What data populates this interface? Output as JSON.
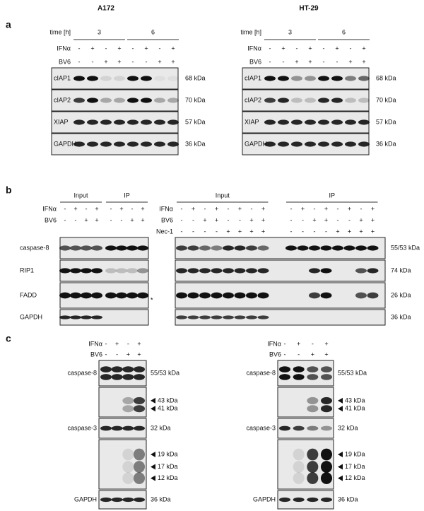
{
  "panels": [
    "a",
    "b",
    "c"
  ],
  "a": [
    {
      "title": "A172",
      "time_label": "time [h]",
      "time_groups": [
        "3",
        "6"
      ],
      "rows": [
        {
          "label": "IFNα",
          "signs": [
            "-",
            "+",
            "-",
            "+",
            "-",
            "+",
            "-",
            "+"
          ]
        },
        {
          "label": "BV6",
          "signs": [
            "-",
            "-",
            "+",
            "+",
            "-",
            "-",
            "+",
            "+"
          ]
        }
      ],
      "blots": [
        {
          "name": "cIAP1",
          "size": "68 kDa"
        },
        {
          "name": "cIAP2",
          "size": "70 kDa"
        },
        {
          "name": "XIAP",
          "size": "57 kDa"
        },
        {
          "name": "GAPDH",
          "size": "36 kDa"
        }
      ]
    },
    {
      "title": "HT-29",
      "time_label": "time [h]",
      "time_groups": [
        "3",
        "6"
      ],
      "rows": [
        {
          "label": "IFNα",
          "signs": [
            "-",
            "+",
            "-",
            "+",
            "-",
            "+",
            "-",
            "+"
          ]
        },
        {
          "label": "BV6",
          "signs": [
            "-",
            "-",
            "+",
            "+",
            "-",
            "-",
            "+",
            "+"
          ]
        }
      ],
      "blots": [
        {
          "name": "cIAP1",
          "size": "68 kDa"
        },
        {
          "name": "cIAP2",
          "size": "70 kDa"
        },
        {
          "name": "XIAP",
          "size": "57 kDa"
        },
        {
          "name": "GAPDH",
          "size": "36 kDa"
        }
      ]
    }
  ],
  "b": {
    "left": {
      "groups": [
        "Input",
        "IP"
      ],
      "rows": [
        {
          "label": "IFNα",
          "signs": [
            "-",
            "+",
            "-",
            "+",
            "-",
            "+",
            "-",
            "+"
          ]
        },
        {
          "label": "BV6",
          "signs": [
            "-",
            "-",
            "+",
            "+",
            "-",
            "-",
            "+",
            "+"
          ]
        }
      ],
      "blots": [
        "caspase-8",
        "RIP1",
        "FADD",
        "GAPDH"
      ],
      "asterisk": "*"
    },
    "right": {
      "groups": [
        "Input",
        "IP"
      ],
      "rows": [
        {
          "label": "IFNα",
          "signs": [
            "-",
            "+",
            "-",
            "+",
            "-",
            "+",
            "-",
            "+",
            "-",
            "+",
            "-",
            "+",
            "-",
            "+",
            "-",
            "+"
          ]
        },
        {
          "label": "BV6",
          "signs": [
            "-",
            "-",
            "+",
            "+",
            "-",
            "-",
            "+",
            "+",
            "-",
            "-",
            "+",
            "+",
            "-",
            "-",
            "+",
            "+"
          ]
        },
        {
          "label": "Nec-1",
          "signs": [
            "-",
            "-",
            "-",
            "-",
            "+",
            "+",
            "+",
            "+",
            "-",
            "-",
            "-",
            "-",
            "+",
            "+",
            "+",
            "+"
          ]
        }
      ],
      "sizes": [
        "55/53 kDa",
        "74 kDa",
        "26 kDa",
        "36 kDa"
      ]
    }
  },
  "c": [
    {
      "rows": [
        {
          "label": "IFNα",
          "signs": [
            "-",
            "+",
            "-",
            "+"
          ]
        },
        {
          "label": "BV6",
          "signs": [
            "-",
            "-",
            "+",
            "+"
          ]
        }
      ],
      "blots": [
        {
          "name": "caspase-8",
          "sizes": [
            "55/53 kDa"
          ]
        },
        {
          "sizes": [
            "43 kDa",
            "41 kDa"
          ]
        },
        {
          "name": "caspase-3",
          "sizes": [
            "32 kDa"
          ]
        },
        {
          "sizes": [
            "19  kDa",
            "17 kDa",
            "12 kDa"
          ]
        },
        {
          "name": "GAPDH",
          "sizes": [
            "36 kDa"
          ]
        }
      ]
    },
    {
      "rows": [
        {
          "label": "IFNα",
          "signs": [
            "-",
            "+",
            "-",
            "+"
          ]
        },
        {
          "label": "BV6",
          "signs": [
            "-",
            "-",
            "+",
            "+"
          ]
        }
      ],
      "blots": [
        {
          "name": "caspase-8",
          "sizes": [
            "55/53 kDa"
          ]
        },
        {
          "sizes": [
            "43 kDa",
            "41 kDa"
          ]
        },
        {
          "name": "caspase-3",
          "sizes": [
            "32 kDa"
          ]
        },
        {
          "sizes": [
            "19 kDa",
            "17 kDa",
            "12 kDa"
          ]
        },
        {
          "name": "GAPDH",
          "sizes": [
            "36 kDa"
          ]
        }
      ]
    }
  ]
}
